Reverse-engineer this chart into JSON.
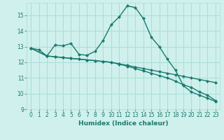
{
  "xlabel": "Humidex (Indice chaleur)",
  "bg_color": "#cff0ec",
  "grid_color": "#aaddd8",
  "line_color": "#1a7a6e",
  "xlim": [
    -0.5,
    23.5
  ],
  "ylim": [
    9,
    15.8
  ],
  "yticks": [
    9,
    10,
    11,
    12,
    13,
    14,
    15
  ],
  "xticks": [
    0,
    1,
    2,
    3,
    4,
    5,
    6,
    7,
    8,
    9,
    10,
    11,
    12,
    13,
    14,
    15,
    16,
    17,
    18,
    19,
    20,
    21,
    22,
    23
  ],
  "line1_x": [
    0,
    1,
    2,
    3,
    4,
    5,
    6,
    7,
    8,
    9,
    10,
    11,
    12,
    13,
    14,
    15,
    16,
    17,
    18,
    19,
    20,
    21,
    22,
    23
  ],
  "line1_y": [
    12.9,
    12.8,
    12.4,
    13.1,
    13.05,
    13.2,
    12.5,
    12.45,
    12.7,
    13.4,
    14.4,
    14.9,
    15.6,
    15.5,
    14.8,
    13.6,
    13.0,
    12.2,
    11.5,
    10.5,
    10.1,
    9.9,
    9.7,
    9.5
  ],
  "line2_x": [
    0,
    2,
    3,
    4,
    5,
    6,
    7,
    8,
    9,
    10,
    11,
    12,
    13,
    14,
    15,
    16,
    17,
    18,
    19,
    20,
    21,
    22,
    23
  ],
  "line2_y": [
    12.9,
    12.4,
    12.35,
    12.3,
    12.25,
    12.2,
    12.15,
    12.1,
    12.05,
    12.0,
    11.9,
    11.8,
    11.7,
    11.6,
    11.5,
    11.4,
    11.3,
    11.2,
    11.1,
    11.0,
    10.9,
    10.8,
    10.7
  ],
  "line3_x": [
    0,
    2,
    3,
    4,
    5,
    6,
    7,
    8,
    9,
    10,
    11,
    12,
    13,
    14,
    15,
    16,
    17,
    18,
    19,
    20,
    21,
    22,
    23
  ],
  "line3_y": [
    12.9,
    12.4,
    12.35,
    12.3,
    12.25,
    12.2,
    12.15,
    12.1,
    12.05,
    12.0,
    11.88,
    11.75,
    11.6,
    11.45,
    11.3,
    11.15,
    11.0,
    10.8,
    10.55,
    10.4,
    10.1,
    9.9,
    9.55
  ]
}
